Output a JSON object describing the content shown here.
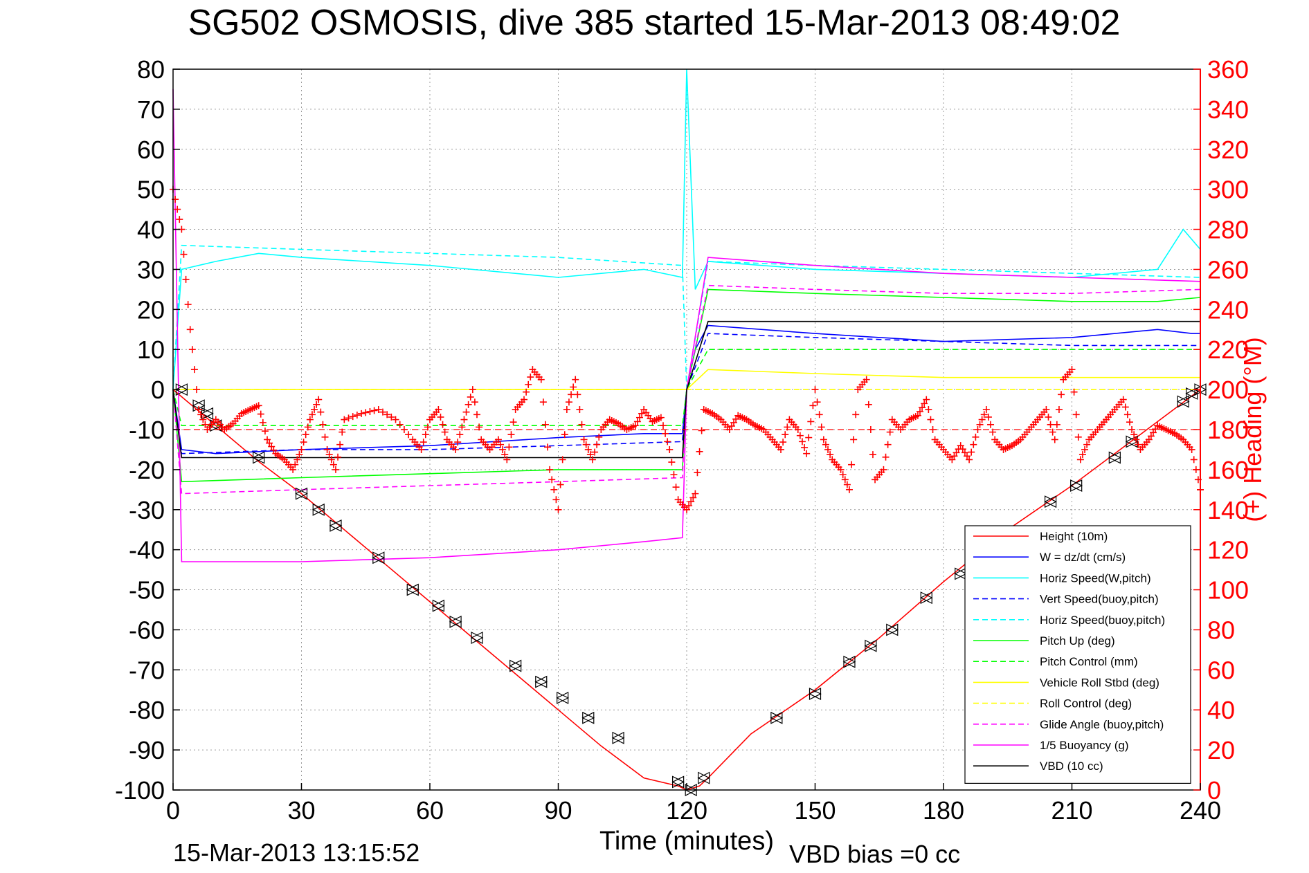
{
  "chart_data": {
    "type": "line",
    "title": "SG502 OSMOSIS, dive 385 started 15-Mar-2013 08:49:02",
    "xlabel": "Time (minutes)",
    "ylabel": "",
    "y2label": "(+) Heading (°M)",
    "footer_left": "15-Mar-2013 13:15:52",
    "footer_right": "VBD bias =0 cc",
    "xlim": [
      0,
      240
    ],
    "ylim": [
      -100,
      80
    ],
    "y2lim": [
      0,
      360
    ],
    "xticks": [
      "0",
      "30",
      "60",
      "90",
      "120",
      "150",
      "180",
      "210",
      "240"
    ],
    "yticks": [
      "80",
      "70",
      "60",
      "50",
      "40",
      "30",
      "20",
      "10",
      "0",
      "-10",
      "-20",
      "-30",
      "-40",
      "-50",
      "-60",
      "-70",
      "-80",
      "-90",
      "-100"
    ],
    "y2ticks": [
      "360",
      "340",
      "320",
      "300",
      "280",
      "260",
      "240",
      "220",
      "200",
      "180",
      "160",
      "140",
      "120",
      "100",
      "80",
      "60",
      "40",
      "20",
      "0"
    ],
    "grid": true,
    "legend_position": "bottom-right",
    "colors": {
      "axis_left": "#000000",
      "axis_right": "#ff0000",
      "grid": "#9a9a9a",
      "heading_marker": "#ff0000",
      "heading_mean": "#ff0000"
    },
    "series": [
      {
        "name": "Height (10m)",
        "color": "#ff0000",
        "dash": "solid",
        "x": [
          0,
          10,
          20,
          30,
          40,
          50,
          60,
          70,
          80,
          90,
          100,
          110,
          118,
          120,
          123,
          125,
          135,
          150,
          165,
          180,
          195,
          210,
          225,
          240
        ],
        "y": [
          0,
          -9,
          -18,
          -26,
          -35,
          -44,
          -53,
          -62,
          -71,
          -80,
          -89,
          -97,
          -99,
          -100,
          -99,
          -97,
          -86,
          -75,
          -62,
          -48,
          -35,
          -24,
          -12,
          0
        ]
      },
      {
        "name": "W = dz/dt (cm/s)",
        "color": "#0000ff",
        "dash": "solid",
        "x": [
          0,
          2,
          10,
          30,
          60,
          90,
          110,
          119,
          120,
          122,
          125,
          150,
          180,
          210,
          230,
          238,
          240
        ],
        "y": [
          0,
          -15,
          -16,
          -15,
          -14,
          -12,
          -11,
          -11,
          0,
          10,
          16,
          14,
          12,
          13,
          15,
          14,
          14
        ]
      },
      {
        "name": "Horiz Speed(W,pitch)",
        "color": "#00ffff",
        "dash": "solid",
        "x": [
          0,
          2,
          10,
          20,
          30,
          60,
          90,
          110,
          119,
          120,
          122,
          125,
          150,
          180,
          210,
          230,
          236,
          240
        ],
        "y": [
          0,
          30,
          32,
          34,
          33,
          31,
          28,
          30,
          28,
          80,
          25,
          32,
          30,
          29,
          28,
          30,
          40,
          35
        ]
      },
      {
        "name": "Vert Speed(buoy,pitch)",
        "color": "#0000ff",
        "dash": "dashed",
        "x": [
          0,
          2,
          30,
          60,
          90,
          119,
          120,
          125,
          150,
          180,
          210,
          240
        ],
        "y": [
          0,
          -16,
          -15,
          -15,
          -14,
          -13,
          0,
          14,
          13,
          12,
          11,
          11
        ]
      },
      {
        "name": "Horiz Speed(buoy,pitch)",
        "color": "#00ffff",
        "dash": "dashed",
        "x": [
          0,
          2,
          30,
          60,
          90,
          119,
          120,
          125,
          150,
          180,
          210,
          240
        ],
        "y": [
          0,
          36,
          35,
          34,
          33,
          31,
          0,
          32,
          31,
          30,
          29,
          28
        ]
      },
      {
        "name": "Pitch Up (deg)",
        "color": "#00ff00",
        "dash": "solid",
        "x": [
          0,
          2,
          30,
          60,
          90,
          119,
          120,
          125,
          150,
          180,
          210,
          230,
          240
        ],
        "y": [
          0,
          -23,
          -22,
          -21,
          -20,
          -20,
          0,
          25,
          24,
          23,
          22,
          22,
          23
        ]
      },
      {
        "name": "Pitch Control (mm)",
        "color": "#00ff00",
        "dash": "dashed",
        "x": [
          0,
          2,
          119,
          120,
          125,
          240
        ],
        "y": [
          0,
          -9,
          -9,
          0,
          10,
          10
        ]
      },
      {
        "name": "Vehicle Roll Stbd (deg)",
        "color": "#ffff00",
        "dash": "solid",
        "x": [
          0,
          2,
          30,
          60,
          90,
          119,
          120,
          125,
          150,
          180,
          210,
          240
        ],
        "y": [
          0,
          0,
          0,
          0,
          0,
          0,
          0,
          5,
          4,
          3,
          3,
          3
        ]
      },
      {
        "name": "Roll Control (deg)",
        "color": "#ffff00",
        "dash": "dashed",
        "x": [
          0,
          2,
          119,
          120,
          125,
          240
        ],
        "y": [
          0,
          0,
          0,
          0,
          0,
          0
        ]
      },
      {
        "name": "Glide Angle (buoy,pitch)",
        "color": "#ff00ff",
        "dash": "dashed",
        "x": [
          0,
          2,
          30,
          60,
          90,
          119,
          120,
          125,
          150,
          180,
          210,
          240
        ],
        "y": [
          0,
          -26,
          -25,
          -24,
          -23,
          -22,
          0,
          26,
          25,
          24,
          24,
          25
        ]
      },
      {
        "name": "1/5 Buoyancy (g)",
        "color": "#ff00ff",
        "dash": "solid",
        "x": [
          0,
          2,
          30,
          60,
          90,
          110,
          119,
          120,
          125,
          150,
          180,
          210,
          240
        ],
        "y": [
          75,
          -43,
          -43,
          -42,
          -40,
          -38,
          -37,
          0,
          33,
          31,
          29,
          28,
          27
        ]
      },
      {
        "name": "VBD (10 cc)",
        "color": "#000000",
        "dash": "solid",
        "x": [
          0,
          2,
          119,
          120,
          125,
          240
        ],
        "y": [
          0,
          -17,
          -17,
          0,
          17,
          17
        ]
      }
    ],
    "heading": {
      "name": "(+) Heading (°M)",
      "mean": 180,
      "x": [
        0,
        2,
        4,
        6,
        8,
        10,
        12,
        14,
        16,
        18,
        20,
        22,
        24,
        26,
        28,
        30,
        32,
        34,
        36,
        38,
        40,
        44,
        48,
        52,
        56,
        58,
        60,
        62,
        64,
        66,
        68,
        70,
        72,
        74,
        76,
        78,
        80,
        82,
        84,
        86,
        88,
        90,
        92,
        94,
        96,
        98,
        100,
        102,
        104,
        106,
        108,
        110,
        112,
        114,
        116,
        118,
        120,
        122,
        124,
        126,
        128,
        130,
        132,
        134,
        136,
        138,
        140,
        142,
        144,
        146,
        148,
        150,
        152,
        154,
        156,
        158,
        160,
        162,
        164,
        166,
        168,
        170,
        172,
        174,
        176,
        178,
        180,
        182,
        184,
        186,
        188,
        190,
        192,
        194,
        196,
        198,
        200,
        202,
        204,
        206,
        208,
        210,
        212,
        214,
        216,
        218,
        220,
        222,
        224,
        226,
        228,
        230,
        232,
        234,
        236,
        238,
        240
      ],
      "y": [
        300,
        280,
        230,
        190,
        180,
        185,
        180,
        183,
        188,
        190,
        192,
        175,
        168,
        165,
        160,
        170,
        185,
        195,
        170,
        160,
        185,
        188,
        190,
        185,
        175,
        170,
        185,
        190,
        175,
        170,
        185,
        200,
        175,
        170,
        175,
        165,
        190,
        195,
        210,
        205,
        160,
        140,
        190,
        205,
        175,
        165,
        180,
        185,
        183,
        180,
        182,
        190,
        184,
        186,
        170,
        145,
        140,
        148,
        190,
        188,
        185,
        180,
        187,
        185,
        182,
        180,
        175,
        170,
        185,
        180,
        168,
        200,
        175,
        165,
        160,
        150,
        200,
        205,
        155,
        160,
        185,
        180,
        185,
        187,
        195,
        175,
        170,
        165,
        172,
        165,
        180,
        190,
        175,
        170,
        172,
        175,
        180,
        185,
        190,
        175,
        205,
        210,
        165,
        175,
        180,
        185,
        190,
        195,
        180,
        170,
        175,
        182,
        180,
        178,
        175,
        170,
        150
      ]
    },
    "markers": {
      "name": "",
      "x": [
        2,
        6,
        8,
        10,
        20,
        30,
        34,
        38,
        48,
        56,
        62,
        66,
        71,
        80,
        86,
        91,
        97,
        104,
        118,
        121,
        124,
        141,
        150,
        158,
        163,
        168,
        176,
        184,
        205,
        211,
        220,
        224,
        236,
        238,
        240
      ],
      "y": [
        0,
        -4,
        -6,
        -9,
        -17,
        -26,
        -30,
        -34,
        -42,
        -50,
        -54,
        -58,
        -62,
        -69,
        -73,
        -77,
        -82,
        -87,
        -98,
        -100,
        -97,
        -82,
        -76,
        -68,
        -64,
        -60,
        -52,
        -46,
        -28,
        -24,
        -17,
        -13,
        -3,
        -1,
        0
      ]
    }
  }
}
